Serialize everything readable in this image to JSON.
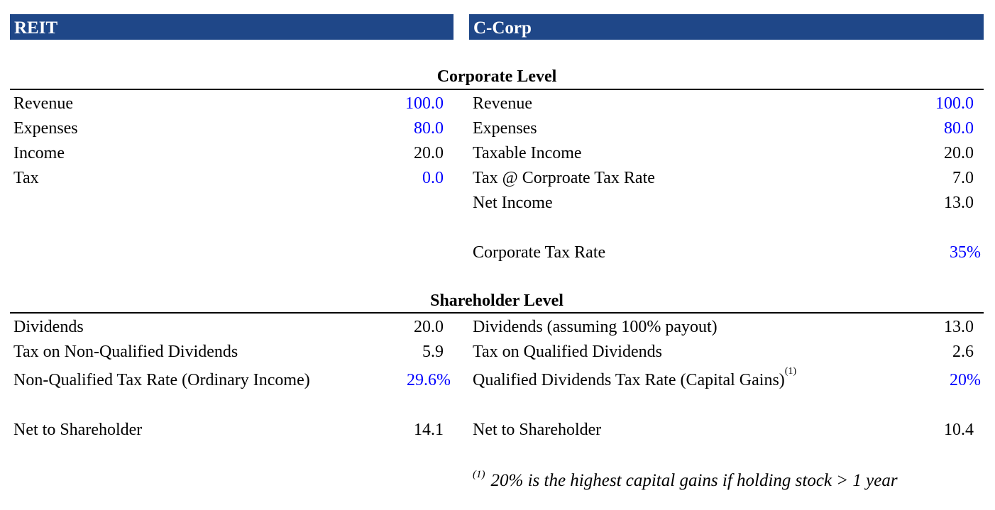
{
  "headers": {
    "reit": "REIT",
    "ccorp": "C-Corp"
  },
  "sections": {
    "corporate": "Corporate Level",
    "shareholder": "Shareholder Level"
  },
  "colors": {
    "header_bg": "#1f4788",
    "input_value": "#0000ff"
  },
  "reit": {
    "corporate": [
      {
        "label": "Revenue",
        "value": "100.0"
      },
      {
        "label": "Expenses",
        "value": "80.0"
      },
      {
        "label": "Income",
        "value": "20.0"
      },
      {
        "label": "Tax",
        "value": "0.0"
      }
    ],
    "shareholder": [
      {
        "label": "Dividends",
        "value": "20.0"
      },
      {
        "label": "Tax on Non-Qualified Dividends",
        "value": "5.9"
      },
      {
        "label": "Non-Qualified Tax Rate (Ordinary Income)",
        "value": "29.6%"
      },
      {
        "label": "Net to Shareholder",
        "value": "14.1"
      }
    ]
  },
  "ccorp": {
    "corporate": [
      {
        "label": "Revenue",
        "value": "100.0"
      },
      {
        "label": "Expenses",
        "value": "80.0"
      },
      {
        "label": "Taxable Income",
        "value": "20.0"
      },
      {
        "label": "Tax @ Corproate Tax Rate",
        "value": "7.0"
      },
      {
        "label": "Net Income",
        "value": "13.0"
      },
      {
        "label": "Corporate Tax Rate",
        "value": "35%"
      }
    ],
    "shareholder": [
      {
        "label": "Dividends (assuming 100% payout)",
        "value": "13.0"
      },
      {
        "label": "Tax on Qualified Dividends",
        "value": "2.6"
      },
      {
        "label": "Qualified Dividends Tax Rate (Capital Gains)",
        "sup": "(1)",
        "value": "20%"
      },
      {
        "label": "Net to Shareholder",
        "value": "10.4"
      }
    ]
  },
  "footnote": {
    "marker": "(1)",
    "text": "20% is the highest capital gains if holding stock > 1 year"
  }
}
